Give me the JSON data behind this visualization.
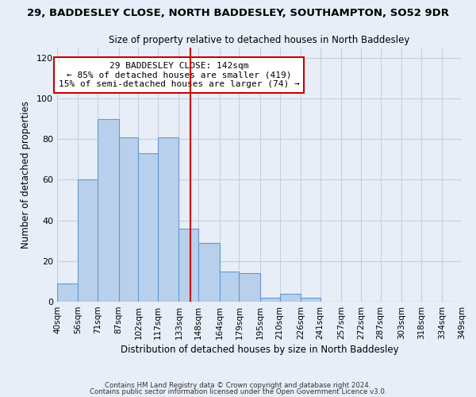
{
  "title": "29, BADDESLEY CLOSE, NORTH BADDESLEY, SOUTHAMPTON, SO52 9DR",
  "subtitle": "Size of property relative to detached houses in North Baddesley",
  "xlabel": "Distribution of detached houses by size in North Baddesley",
  "ylabel": "Number of detached properties",
  "bin_edges": [
    40,
    56,
    71,
    87,
    102,
    117,
    133,
    148,
    164,
    179,
    195,
    210,
    226,
    241,
    257,
    272,
    287,
    303,
    318,
    334,
    349
  ],
  "bar_heights": [
    9,
    60,
    90,
    81,
    73,
    81,
    36,
    29,
    15,
    14,
    2,
    4,
    2,
    0,
    0,
    0,
    0,
    0,
    0,
    0
  ],
  "bar_color": "#b8d0eb",
  "bar_edge_color": "#6699cc",
  "vline_x": 142,
  "vline_color": "#cc0000",
  "ylim": [
    0,
    125
  ],
  "yticks": [
    0,
    20,
    40,
    60,
    80,
    100,
    120
  ],
  "annotation_text": "29 BADDESLEY CLOSE: 142sqm\n← 85% of detached houses are smaller (419)\n15% of semi-detached houses are larger (74) →",
  "annotation_box_color": "#ffffff",
  "annotation_box_edge_color": "#cc0000",
  "footer_line1": "Contains HM Land Registry data © Crown copyright and database right 2024.",
  "footer_line2": "Contains public sector information licensed under the Open Government Licence v3.0.",
  "background_color": "#e8eef8",
  "grid_color": "#c8cce0"
}
